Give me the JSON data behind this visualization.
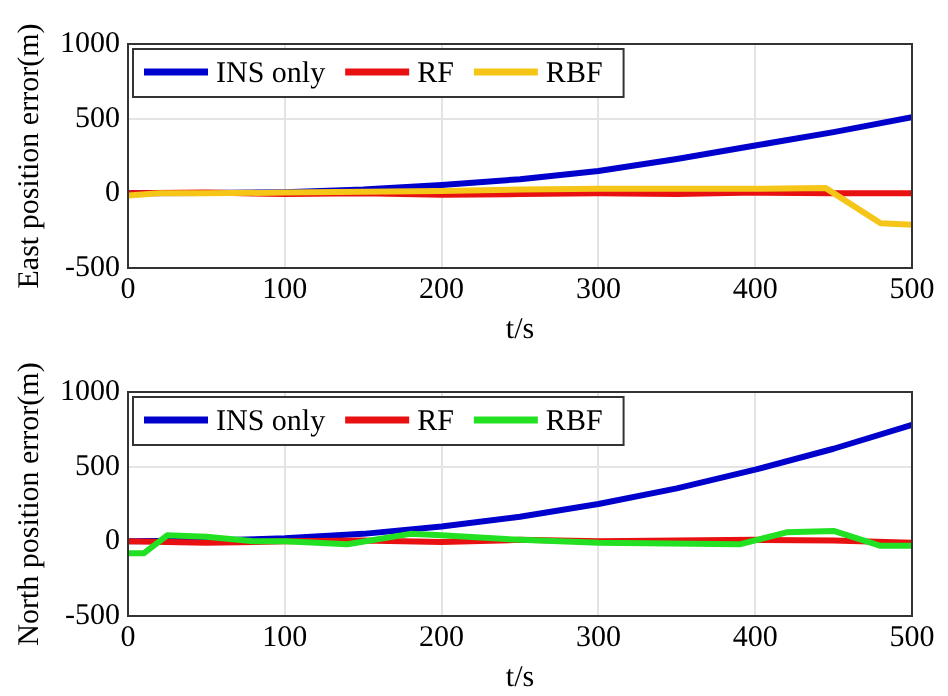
{
  "chart_data": [
    {
      "type": "line",
      "xlabel": "t/s",
      "ylabel": "East position error(m)",
      "xlim": [
        0,
        500
      ],
      "xticks": [
        0,
        100,
        200,
        300,
        400,
        500
      ],
      "ylim": [
        -500,
        1000
      ],
      "yticks": [
        -500,
        0,
        500,
        1000
      ],
      "grid": true,
      "legend": "top left",
      "series": [
        {
          "name": "INS only",
          "color": "#0000cc",
          "x": [
            0,
            50,
            100,
            150,
            200,
            250,
            300,
            350,
            400,
            450,
            500
          ],
          "values": [
            0,
            2,
            8,
            25,
            55,
            95,
            150,
            230,
            320,
            410,
            510
          ]
        },
        {
          "name": "RF",
          "color": "#e81010",
          "x": [
            0,
            50,
            100,
            150,
            200,
            250,
            300,
            350,
            400,
            450,
            500
          ],
          "values": [
            0,
            5,
            -5,
            0,
            -10,
            -5,
            0,
            -5,
            5,
            0,
            0
          ]
        },
        {
          "name": "RBF",
          "color": "#f5c518",
          "x": [
            0,
            20,
            50,
            100,
            150,
            200,
            250,
            300,
            350,
            400,
            445,
            480,
            500
          ],
          "values": [
            -15,
            0,
            0,
            5,
            10,
            15,
            25,
            30,
            30,
            30,
            35,
            -200,
            -210
          ]
        }
      ]
    },
    {
      "type": "line",
      "xlabel": "t/s",
      "ylabel": "North position error(m)",
      "xlim": [
        0,
        500
      ],
      "xticks": [
        0,
        100,
        200,
        300,
        400,
        500
      ],
      "ylim": [
        -500,
        1000
      ],
      "yticks": [
        -500,
        0,
        500,
        1000
      ],
      "grid": true,
      "legend": "top left",
      "series": [
        {
          "name": "INS only",
          "color": "#0000cc",
          "x": [
            0,
            50,
            100,
            150,
            200,
            250,
            300,
            350,
            400,
            450,
            500
          ],
          "values": [
            0,
            5,
            20,
            50,
            100,
            165,
            250,
            355,
            480,
            620,
            780
          ]
        },
        {
          "name": "RF",
          "color": "#e81010",
          "x": [
            0,
            50,
            100,
            150,
            200,
            250,
            300,
            350,
            400,
            450,
            500
          ],
          "values": [
            0,
            -10,
            0,
            5,
            -5,
            10,
            0,
            5,
            10,
            5,
            -10
          ]
        },
        {
          "name": "RBF",
          "color": "#22e022",
          "x": [
            0,
            10,
            25,
            50,
            80,
            100,
            140,
            180,
            200,
            250,
            300,
            390,
            420,
            450,
            480,
            500
          ],
          "values": [
            -80,
            -80,
            40,
            30,
            0,
            0,
            -20,
            50,
            40,
            10,
            -10,
            -20,
            60,
            70,
            -30,
            -30
          ]
        }
      ]
    }
  ]
}
